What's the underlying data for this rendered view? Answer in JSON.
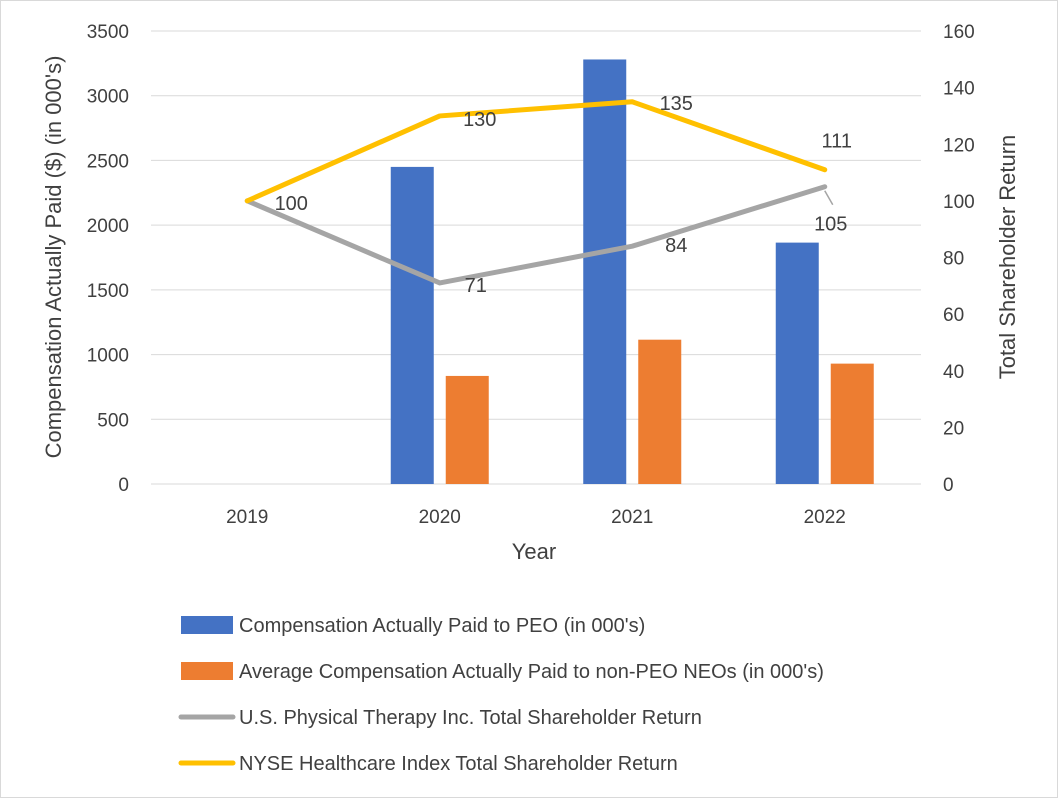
{
  "chart_data": {
    "type": "bar",
    "title": "",
    "xlabel": "Year",
    "ylabel": "Compensation Actually Paid ($) (in 000's)",
    "y2label": "Total Shareholder Return",
    "categories": [
      "2019",
      "2020",
      "2021",
      "2022"
    ],
    "ylim": [
      0,
      3500
    ],
    "yticks": [
      "0",
      "500",
      "1000",
      "1500",
      "2000",
      "2500",
      "3000",
      "3500"
    ],
    "y2lim": [
      0,
      160
    ],
    "y2ticks": [
      "0",
      "20",
      "40",
      "60",
      "80",
      "100",
      "120",
      "140",
      "160"
    ],
    "grid": true,
    "legend_position": "bottom",
    "series": [
      {
        "name": "Compensation Actually Paid to PEO (in 000's)",
        "kind": "bar",
        "axis": "left",
        "color": "#4472c4",
        "values": [
          null,
          2450,
          3280,
          1865
        ]
      },
      {
        "name": "Average Compensation Actually Paid to non-PEO NEOs  (in 000's)",
        "kind": "bar",
        "axis": "left",
        "color": "#ed7d31",
        "values": [
          null,
          835,
          1115,
          930
        ]
      },
      {
        "name": "U.S. Physical Therapy Inc. Total Shareholder Return",
        "kind": "line",
        "axis": "right",
        "color": "#a5a5a5",
        "values": [
          100,
          71,
          84,
          105
        ],
        "labels": [
          "100",
          "71",
          "84",
          "105"
        ]
      },
      {
        "name": "NYSE Healthcare Index Total Shareholder Return",
        "kind": "line",
        "axis": "right",
        "color": "#ffc000",
        "values": [
          100,
          130,
          135,
          111
        ],
        "labels": [
          "",
          "130",
          "135",
          "111"
        ]
      }
    ]
  }
}
